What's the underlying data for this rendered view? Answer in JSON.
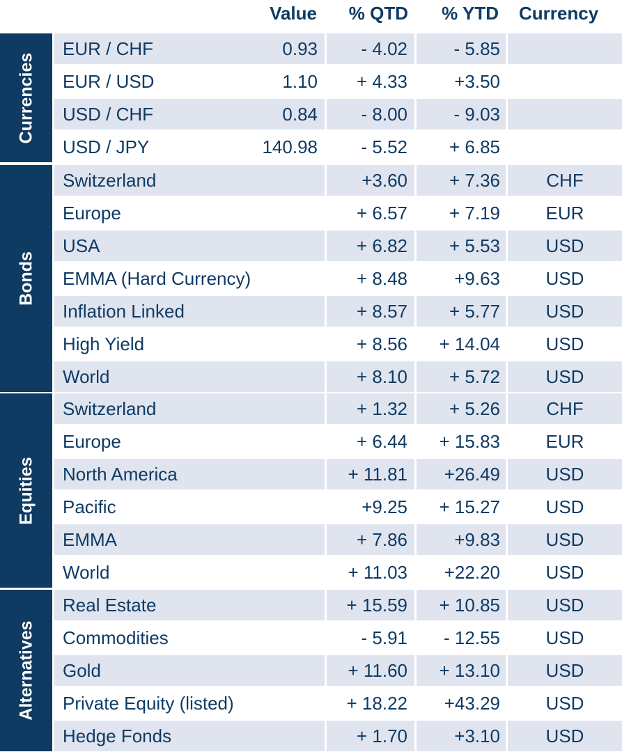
{
  "header": {
    "value": "Value",
    "qtd": "% QTD",
    "ytd": "% YTD",
    "currency": "Currency"
  },
  "groups": [
    {
      "label": "Currencies",
      "rows": [
        {
          "name": "EUR / CHF",
          "value": "0.93",
          "qtd": "- 4.02",
          "ytd": "- 5.85",
          "currency": ""
        },
        {
          "name": "EUR / USD",
          "value": "1.10",
          "qtd": "+ 4.33",
          "ytd": "+3.50",
          "currency": ""
        },
        {
          "name": "USD / CHF",
          "value": "0.84",
          "qtd": "- 8.00",
          "ytd": "- 9.03",
          "currency": ""
        },
        {
          "name": "USD / JPY",
          "value": "140.98",
          "qtd": "- 5.52",
          "ytd": "+ 6.85",
          "currency": ""
        }
      ]
    },
    {
      "label": "Bonds",
      "rows": [
        {
          "name": "Switzerland",
          "value": "",
          "qtd": "+3.60",
          "ytd": "+ 7.36",
          "currency": "CHF"
        },
        {
          "name": "Europe",
          "value": "",
          "qtd": "+ 6.57",
          "ytd": "+ 7.19",
          "currency": "EUR"
        },
        {
          "name": "USA",
          "value": "",
          "qtd": "+ 6.82",
          "ytd": "+ 5.53",
          "currency": "USD"
        },
        {
          "name": "EMMA (Hard Currency)",
          "value": "",
          "qtd": "+ 8.48",
          "ytd": "+9.63",
          "currency": "USD"
        },
        {
          "name": "Inflation Linked",
          "value": "",
          "qtd": "+ 8.57",
          "ytd": "+ 5.77",
          "currency": "USD"
        },
        {
          "name": "High Yield",
          "value": "",
          "qtd": "+ 8.56",
          "ytd": "+ 14.04",
          "currency": "USD"
        },
        {
          "name": "World",
          "value": "",
          "qtd": "+ 8.10",
          "ytd": "+ 5.72",
          "currency": "USD"
        }
      ]
    },
    {
      "label": "Equities",
      "rows": [
        {
          "name": "Switzerland",
          "value": "",
          "qtd": "+ 1.32",
          "ytd": "+ 5.26",
          "currency": "CHF"
        },
        {
          "name": "Europe",
          "value": "",
          "qtd": "+ 6.44",
          "ytd": "+ 15.83",
          "currency": "EUR"
        },
        {
          "name": "North America",
          "value": "",
          "qtd": "+ 11.81",
          "ytd": "+26.49",
          "currency": "USD"
        },
        {
          "name": "Pacific",
          "value": "",
          "qtd": "+9.25",
          "ytd": "+ 15.27",
          "currency": "USD"
        },
        {
          "name": "EMMA",
          "value": "",
          "qtd": "+ 7.86",
          "ytd": "+9.83",
          "currency": "USD"
        },
        {
          "name": "World",
          "value": "",
          "qtd": "+ 11.03",
          "ytd": "+22.20",
          "currency": "USD"
        }
      ]
    },
    {
      "label": "Alternatives",
      "rows": [
        {
          "name": "Real Estate",
          "value": "",
          "qtd": "+ 15.59",
          "ytd": "+ 10.85",
          "currency": "USD"
        },
        {
          "name": "Commodities",
          "value": "",
          "qtd": "- 5.91",
          "ytd": "- 12.55",
          "currency": "USD"
        },
        {
          "name": "Gold",
          "value": "",
          "qtd": "+ 11.60",
          "ytd": "+ 13.10",
          "currency": "USD"
        },
        {
          "name": "Private Equity (listed)",
          "value": "",
          "qtd": "+ 18.22",
          "ytd": "+43.29",
          "currency": "USD"
        },
        {
          "name": "Hedge Fonds",
          "value": "",
          "qtd": "+ 1.70",
          "ytd": "+3.10",
          "currency": "USD"
        }
      ]
    }
  ],
  "colors": {
    "navy": "#0f3b63",
    "stripe": "#dfe4ef",
    "background": "#ffffff"
  }
}
